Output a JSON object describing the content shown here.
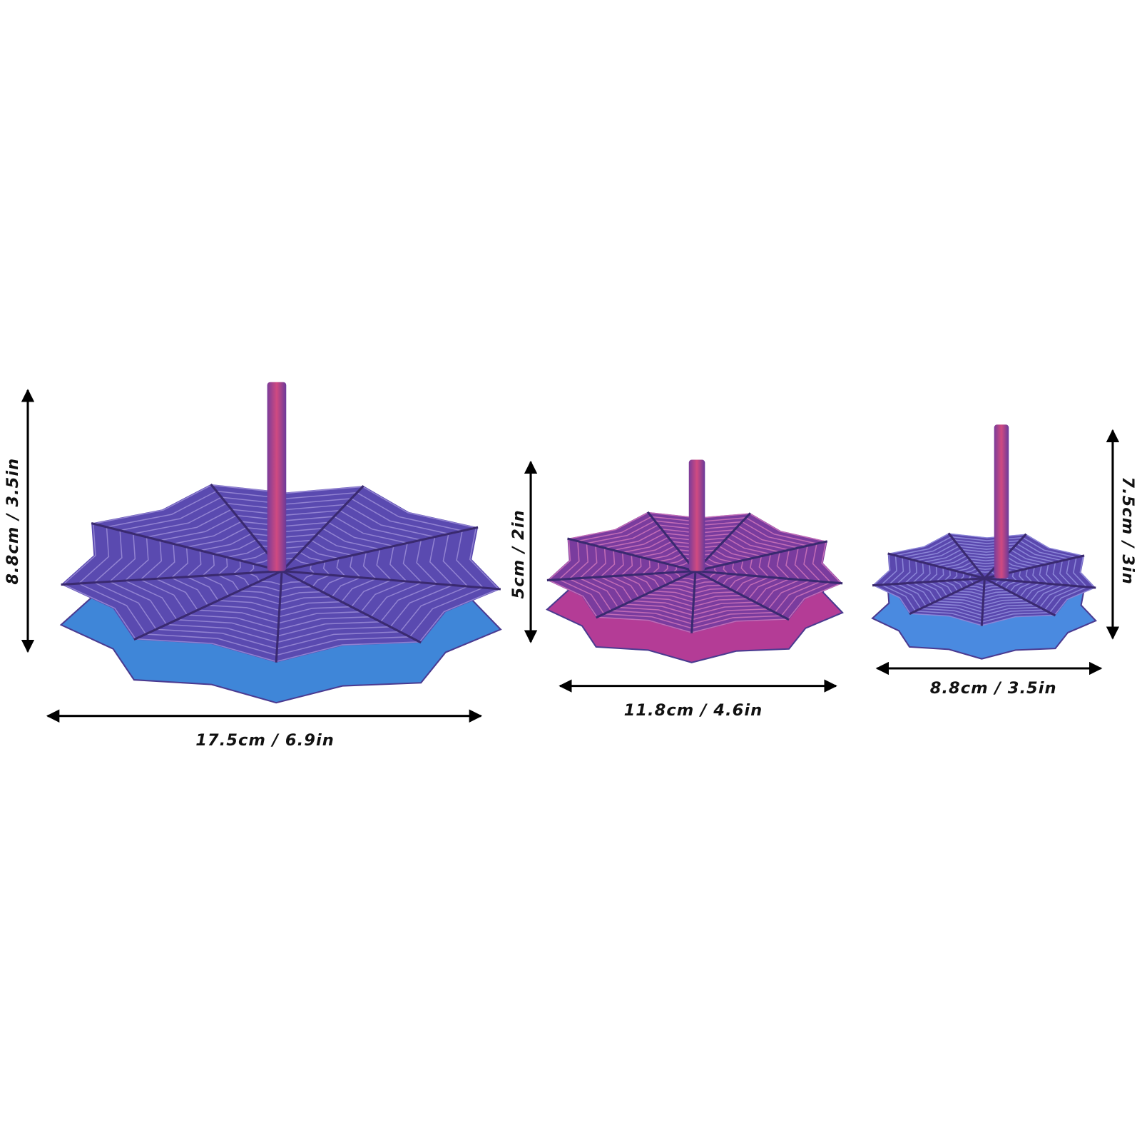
{
  "items": [
    {
      "height_label": "8.8cm / 3.5in",
      "width_label": "17.5cm / 6.9in"
    },
    {
      "height_label": "5cm / 2in",
      "width_label": "11.8cm / 4.6in"
    },
    {
      "height_label": "7.5cm / 3in",
      "width_label": "8.8cm / 3.5in"
    }
  ]
}
